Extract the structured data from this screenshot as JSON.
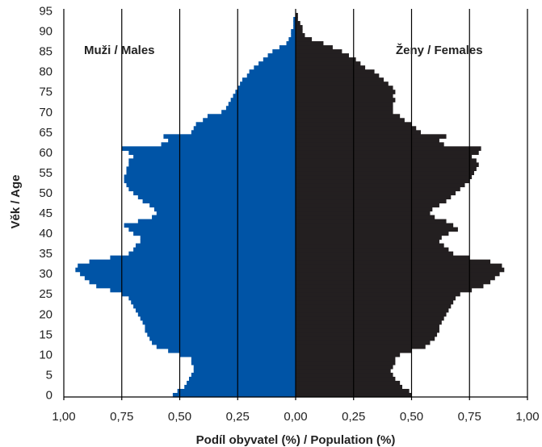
{
  "chart_data": {
    "type": "bar",
    "orientation": "horizontal-pyramid",
    "xlabel": "Podíl obyvatel (%) / Population (%)",
    "ylabel": "Věk / Age",
    "grid": true,
    "xlim": [
      -1.0,
      1.0
    ],
    "ylim": [
      0,
      96
    ],
    "x_tick_labels": [
      "1,00",
      "0,75",
      "0,50",
      "0,25",
      "0,00",
      "0,25",
      "0,50",
      "0,75",
      "1,00"
    ],
    "y_tick_labels": [
      "0",
      "5",
      "10",
      "15",
      "20",
      "25",
      "30",
      "35",
      "40",
      "45",
      "50",
      "55",
      "60",
      "65",
      "70",
      "75",
      "80",
      "85",
      "90",
      "95"
    ],
    "ages": [
      0,
      1,
      2,
      3,
      4,
      5,
      6,
      7,
      8,
      9,
      10,
      11,
      12,
      13,
      14,
      15,
      16,
      17,
      18,
      19,
      20,
      21,
      22,
      23,
      24,
      25,
      26,
      27,
      28,
      29,
      30,
      31,
      32,
      33,
      34,
      35,
      36,
      37,
      38,
      39,
      40,
      41,
      42,
      43,
      44,
      45,
      46,
      47,
      48,
      49,
      50,
      51,
      52,
      53,
      54,
      55,
      56,
      57,
      58,
      59,
      60,
      61,
      62,
      63,
      64,
      65,
      66,
      67,
      68,
      69,
      70,
      71,
      72,
      73,
      74,
      75,
      76,
      77,
      78,
      79,
      80,
      81,
      82,
      83,
      84,
      85,
      86,
      87,
      88,
      89,
      90,
      91,
      92,
      93,
      94,
      95
    ],
    "series": [
      {
        "name": "Muži / Males",
        "color": "#0054a6",
        "side": "left",
        "values": [
          0.53,
          0.51,
          0.48,
          0.47,
          0.46,
          0.45,
          0.44,
          0.44,
          0.45,
          0.45,
          0.5,
          0.55,
          0.6,
          0.62,
          0.63,
          0.64,
          0.65,
          0.65,
          0.66,
          0.67,
          0.68,
          0.69,
          0.7,
          0.71,
          0.72,
          0.75,
          0.8,
          0.86,
          0.89,
          0.91,
          0.93,
          0.95,
          0.94,
          0.89,
          0.8,
          0.72,
          0.7,
          0.69,
          0.67,
          0.67,
          0.7,
          0.72,
          0.74,
          0.68,
          0.62,
          0.6,
          0.61,
          0.63,
          0.66,
          0.68,
          0.7,
          0.72,
          0.73,
          0.74,
          0.74,
          0.73,
          0.73,
          0.72,
          0.72,
          0.7,
          0.72,
          0.75,
          0.58,
          0.55,
          0.57,
          0.45,
          0.44,
          0.43,
          0.4,
          0.38,
          0.32,
          0.3,
          0.29,
          0.28,
          0.27,
          0.26,
          0.25,
          0.24,
          0.23,
          0.21,
          0.2,
          0.18,
          0.16,
          0.14,
          0.12,
          0.1,
          0.07,
          0.04,
          0.03,
          0.02,
          0.02,
          0.01,
          0.01,
          0.01,
          0.0,
          0.0
        ]
      },
      {
        "name": "Ženy / Females",
        "color": "#231f20",
        "side": "right",
        "values": [
          0.5,
          0.49,
          0.46,
          0.45,
          0.43,
          0.42,
          0.41,
          0.42,
          0.43,
          0.43,
          0.45,
          0.5,
          0.56,
          0.58,
          0.6,
          0.61,
          0.62,
          0.62,
          0.63,
          0.64,
          0.65,
          0.66,
          0.67,
          0.68,
          0.69,
          0.71,
          0.76,
          0.81,
          0.84,
          0.86,
          0.88,
          0.9,
          0.89,
          0.84,
          0.75,
          0.68,
          0.66,
          0.64,
          0.62,
          0.63,
          0.66,
          0.7,
          0.68,
          0.65,
          0.6,
          0.58,
          0.59,
          0.62,
          0.65,
          0.67,
          0.69,
          0.71,
          0.73,
          0.75,
          0.76,
          0.77,
          0.78,
          0.79,
          0.78,
          0.76,
          0.79,
          0.8,
          0.64,
          0.62,
          0.65,
          0.54,
          0.52,
          0.5,
          0.47,
          0.45,
          0.42,
          0.42,
          0.42,
          0.43,
          0.42,
          0.43,
          0.42,
          0.4,
          0.38,
          0.36,
          0.34,
          0.3,
          0.28,
          0.26,
          0.23,
          0.2,
          0.16,
          0.12,
          0.07,
          0.04,
          0.03,
          0.03,
          0.02,
          0.01,
          0.01,
          0.0
        ]
      }
    ]
  }
}
